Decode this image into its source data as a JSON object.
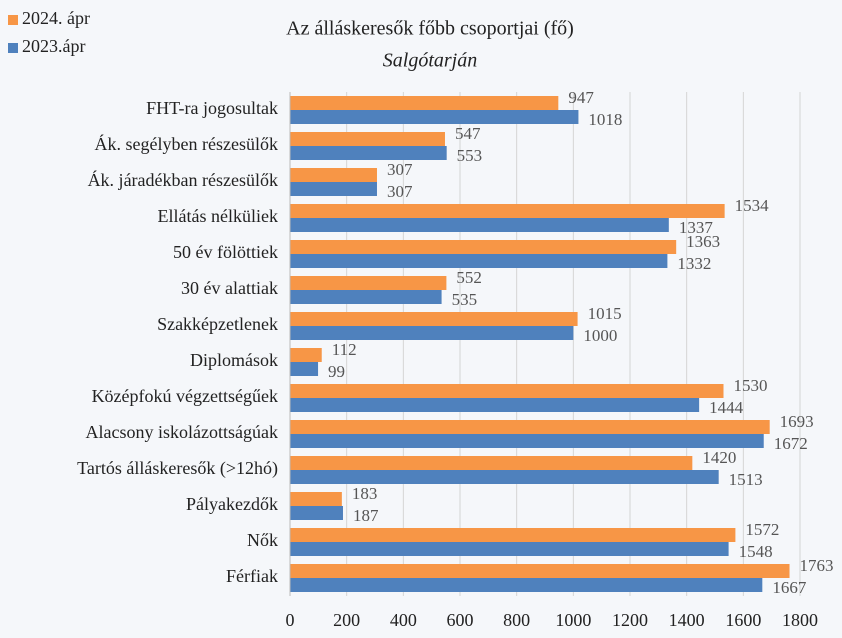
{
  "chart_data": {
    "type": "barh",
    "title": "Az álláskeresők főbb csoportjai (fő)",
    "subtitle": "Salgótarján",
    "categories": [
      "FHT-ra jogosultak",
      "Ák. segélyben részesülők",
      "Ák. járadékban részesülők",
      "Ellátás nélküliek",
      "50 év fölöttiek",
      "30 év alattiak",
      "Szakképzetlenek",
      "Diplomások",
      "Középfokú végzettségűek",
      "Alacsony iskolázottságúak",
      "Tartós álláskeresők (>12hó)",
      "Pályakezdők",
      "Nők",
      "Férfiak"
    ],
    "series": [
      {
        "name": "2024. ápr",
        "color": "#f79646",
        "values": [
          947,
          547,
          307,
          1534,
          1363,
          552,
          1015,
          112,
          1530,
          1693,
          1420,
          183,
          1572,
          1763
        ]
      },
      {
        "name": "2023.ápr",
        "color": "#4f81bd",
        "values": [
          1018,
          553,
          307,
          1337,
          1332,
          535,
          1000,
          99,
          1444,
          1672,
          1513,
          187,
          1548,
          1667
        ]
      }
    ],
    "xlim": [
      0,
      1800
    ],
    "xticks": [
      0,
      200,
      400,
      600,
      800,
      1000,
      1200,
      1400,
      1600,
      1800
    ],
    "grid": true
  }
}
